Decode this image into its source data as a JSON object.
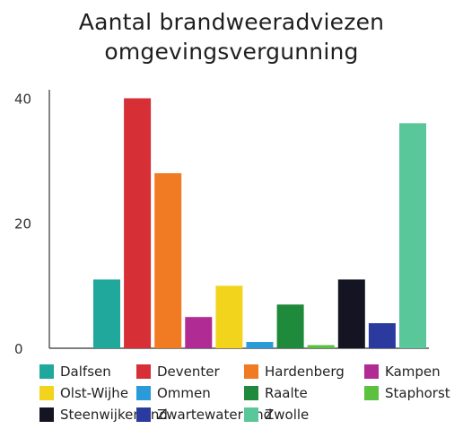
{
  "chart_data": {
    "type": "bar",
    "title_lines": [
      "Aantal brandweeradviezen",
      "omgevingsvergunning"
    ],
    "xlabel": "",
    "ylabel": "",
    "ylim": [
      0,
      40.5
    ],
    "yticks": [
      "0",
      "20",
      "40"
    ],
    "ytick_values": [
      0,
      20,
      40
    ],
    "grid": false,
    "legend_position": "bottom",
    "categories": [
      "Dalfsen",
      "Deventer",
      "Hardenberg",
      "Kampen",
      "Olst-Wijhe",
      "Ommen",
      "Raalte",
      "Staphorst",
      "Steenwijkerland",
      "Zwartewaterland",
      "Zwolle"
    ],
    "values": [
      11,
      40,
      28,
      5,
      10,
      1,
      7,
      0.5,
      11,
      4,
      36
    ],
    "colors": [
      "#1fa89b",
      "#d62f35",
      "#f07b23",
      "#b02b93",
      "#f1d41b",
      "#2a9ad9",
      "#1f8a3c",
      "#5cc13f",
      "#141423",
      "#2a3a9e",
      "#5ac79a"
    ]
  }
}
